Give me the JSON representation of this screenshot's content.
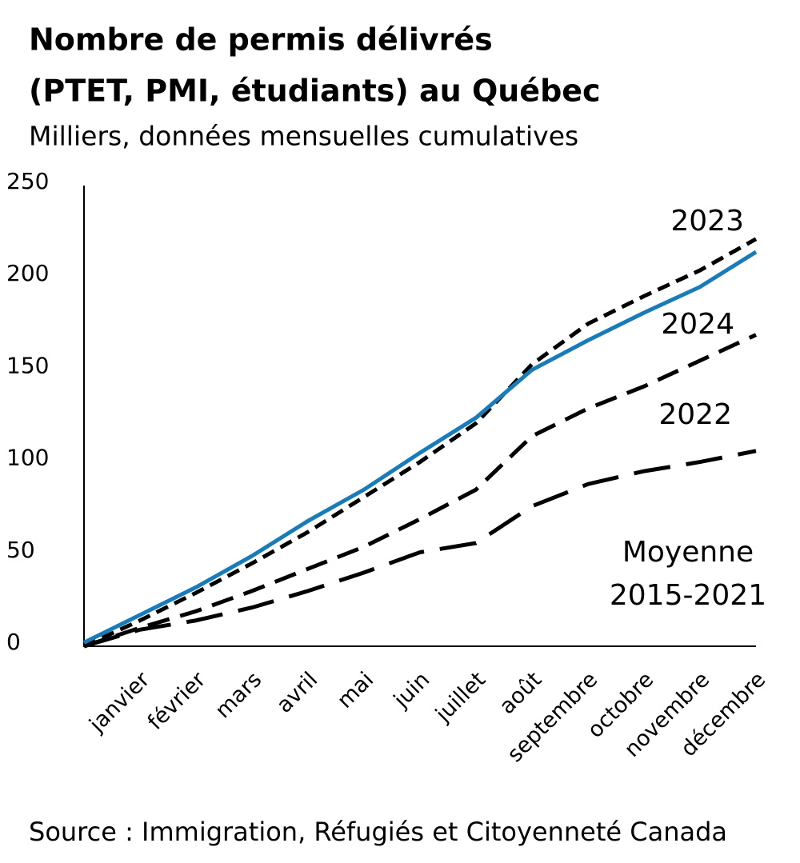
{
  "chart_data": {
    "type": "line",
    "title": "Nombre de permis délivrés",
    "title_line2": "(PTET, PMI, étudiants) au Québec",
    "subtitle": "Milliers, données mensuelles cumulatives",
    "source": "Source : Immigration, Réfugiés et Citoyenneté Canada",
    "categories": [
      null,
      "janvier",
      "février",
      "mars",
      "avril",
      "mai",
      "juin",
      "juillet",
      "août",
      "septembre",
      "octobre",
      "novembre",
      "décembre"
    ],
    "series": [
      {
        "name": "2023",
        "color": "#000000",
        "values": [
          0,
          14,
          29,
          45,
          62,
          81,
          100,
          121,
          153,
          175,
          190,
          204,
          221
        ]
      },
      {
        "name": "2022",
        "color": "#000000",
        "values": [
          0,
          10,
          19,
          30,
          42,
          54,
          69,
          85,
          114,
          129,
          141,
          155,
          169
        ]
      },
      {
        "name": "Moyenne 2015-2021",
        "color": "#000000",
        "values": [
          0,
          9,
          14,
          21,
          30,
          40,
          51,
          56,
          76,
          88,
          95,
          100,
          106
        ]
      },
      {
        "name": "2024",
        "color": "#1a7bb9",
        "values": [
          2,
          17,
          32,
          49,
          68,
          85,
          105,
          124,
          150,
          166,
          181,
          195,
          214
        ]
      }
    ],
    "ylim": [
      0,
      250
    ],
    "yticks": [
      0,
      50,
      100,
      150,
      200,
      250
    ],
    "grid": false
  }
}
